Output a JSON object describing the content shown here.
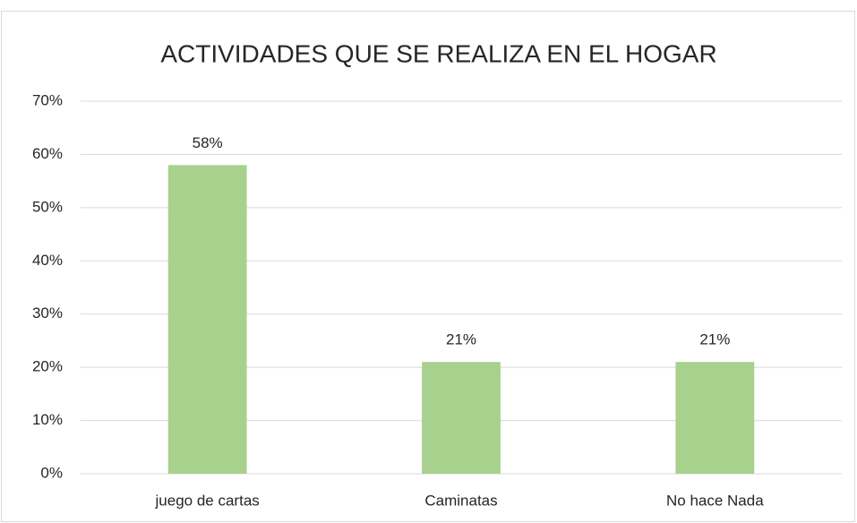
{
  "chart_data": {
    "type": "bar",
    "title": "ACTIVIDADES QUE SE REALIZA EN EL HOGAR",
    "categories": [
      "juego de cartas",
      "Caminatas",
      "No hace Nada"
    ],
    "values": [
      58,
      21,
      21
    ],
    "value_labels": [
      "58%",
      "21%",
      "21%"
    ],
    "color": "#a9d18e",
    "ylim": [
      0,
      70
    ],
    "yticks": [
      {
        "value": 0,
        "label": "0%"
      },
      {
        "value": 10,
        "label": "10%"
      },
      {
        "value": 20,
        "label": "20%"
      },
      {
        "value": 30,
        "label": "30%"
      },
      {
        "value": 40,
        "label": "40%"
      },
      {
        "value": 50,
        "label": "50%"
      },
      {
        "value": 60,
        "label": "60%"
      },
      {
        "value": 70,
        "label": "70%"
      }
    ],
    "grid": true
  }
}
